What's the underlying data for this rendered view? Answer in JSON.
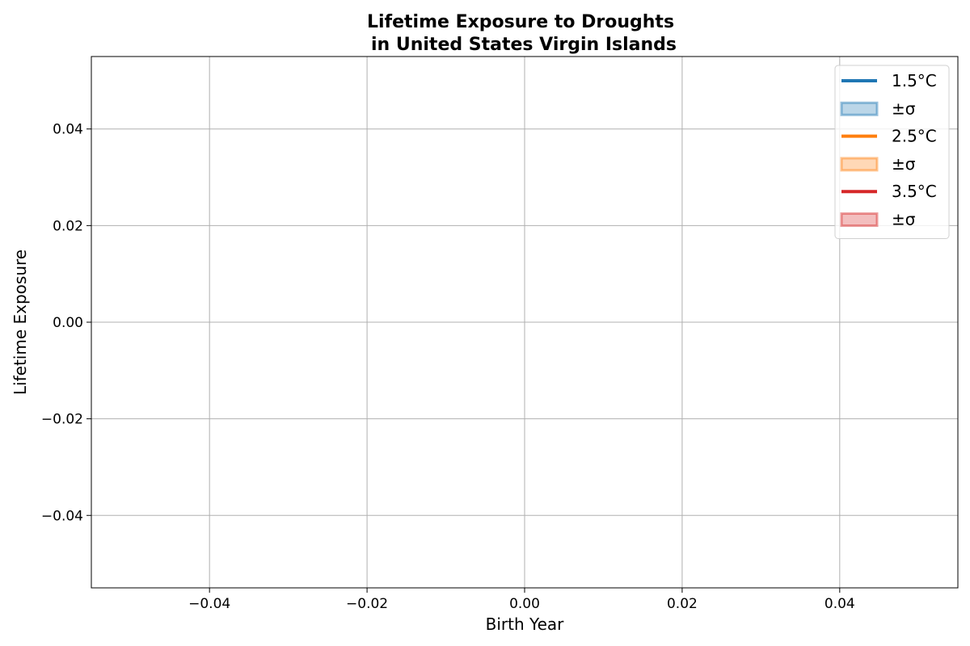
{
  "chart_data": {
    "type": "line",
    "title": [
      "Lifetime Exposure to Droughts",
      "in United States Virgin Islands"
    ],
    "xlabel": "Birth Year",
    "ylabel": "Lifetime Exposure",
    "xlim": [
      -0.055,
      0.055
    ],
    "ylim": [
      -0.055,
      0.055
    ],
    "xticks": [
      -0.04,
      -0.02,
      0.0,
      0.02,
      0.04
    ],
    "yticks": [
      -0.04,
      -0.02,
      0.0,
      0.02,
      0.04
    ],
    "xtick_labels": [
      "−0.04",
      "−0.02",
      "0.00",
      "0.02",
      "0.04"
    ],
    "ytick_labels": [
      "−0.04",
      "−0.02",
      "0.00",
      "0.02",
      "0.04"
    ],
    "grid": true,
    "legend_position": "top-right",
    "legend": [
      {
        "label": "1.5°C",
        "kind": "line",
        "color": "#1f77b4"
      },
      {
        "label": "±σ",
        "kind": "band",
        "color": "#1f77b4"
      },
      {
        "label": "2.5°C",
        "kind": "line",
        "color": "#ff7f0e"
      },
      {
        "label": "±σ",
        "kind": "band",
        "color": "#ff7f0e"
      },
      {
        "label": "3.5°C",
        "kind": "line",
        "color": "#d62728"
      },
      {
        "label": "±σ",
        "kind": "band",
        "color": "#d62728"
      }
    ],
    "series": [
      {
        "name": "1.5°C",
        "x": [],
        "y": [],
        "color": "#1f77b4"
      },
      {
        "name": "2.5°C",
        "x": [],
        "y": [],
        "color": "#ff7f0e"
      },
      {
        "name": "3.5°C",
        "x": [],
        "y": [],
        "color": "#d62728"
      }
    ]
  }
}
